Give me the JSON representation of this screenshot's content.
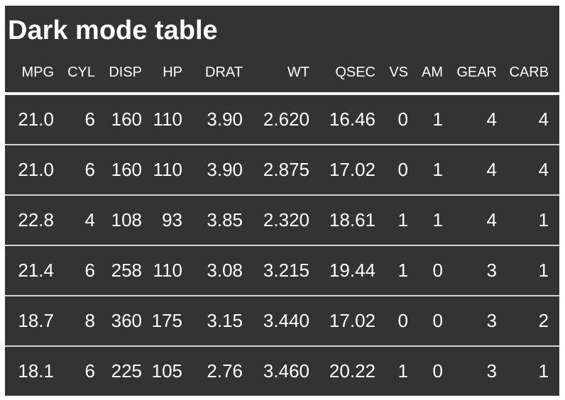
{
  "page": {
    "background_color": "#ffffff"
  },
  "table_style": {
    "table_bg_color": "#333333",
    "text_color": "#ffffff",
    "row_separator_color": "#d3d3d3",
    "header_gap_color": "#ffffff"
  },
  "chart_data": {
    "type": "table",
    "title": "Dark mode table",
    "columns": [
      "MPG",
      "CYL",
      "DISP",
      "HP",
      "DRAT",
      "WT",
      "QSEC",
      "VS",
      "AM",
      "GEAR",
      "CARB"
    ],
    "rows": [
      [
        "21.0",
        "6",
        "160",
        "110",
        "3.90",
        "2.620",
        "16.46",
        "0",
        "1",
        "4",
        "4"
      ],
      [
        "21.0",
        "6",
        "160",
        "110",
        "3.90",
        "2.875",
        "17.02",
        "0",
        "1",
        "4",
        "4"
      ],
      [
        "22.8",
        "4",
        "108",
        "93",
        "3.85",
        "2.320",
        "18.61",
        "1",
        "1",
        "4",
        "1"
      ],
      [
        "21.4",
        "6",
        "258",
        "110",
        "3.08",
        "3.215",
        "19.44",
        "1",
        "0",
        "3",
        "1"
      ],
      [
        "18.7",
        "8",
        "360",
        "175",
        "3.15",
        "3.440",
        "17.02",
        "0",
        "0",
        "3",
        "2"
      ],
      [
        "18.1",
        "6",
        "225",
        "105",
        "2.76",
        "3.460",
        "20.22",
        "1",
        "0",
        "3",
        "1"
      ]
    ],
    "layout_hints": {
      "alignment": "right",
      "title_alignment": "left",
      "grid": "horizontal-row-separators"
    }
  }
}
